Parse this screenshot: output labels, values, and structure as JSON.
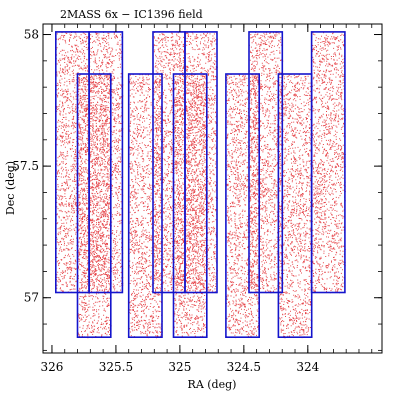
{
  "chart_data": {
    "type": "scatter",
    "title": "2MASS 6x  −  IC1396 field",
    "xlabel": "RA (deg)",
    "ylabel": "Dec (deg)",
    "xlim": [
      326.07,
      323.42
    ],
    "ylim": [
      56.79,
      58.04
    ],
    "x_reversed": true,
    "x_ticks": [
      {
        "value": 326,
        "label": "326"
      },
      {
        "value": 325.5,
        "label": "325.5"
      },
      {
        "value": 325,
        "label": "325"
      },
      {
        "value": 324.5,
        "label": "324.5"
      },
      {
        "value": 324,
        "label": "324"
      }
    ],
    "y_ticks": [
      {
        "value": 58,
        "label": "58"
      },
      {
        "value": 57.5,
        "label": "57.5"
      },
      {
        "value": 57,
        "label": "57"
      }
    ],
    "grid": false,
    "legend": "none",
    "colors": {
      "points": "#e0191f",
      "fields": "#1414cc",
      "axes": "#000000"
    },
    "series": [
      {
        "name": "",
        "kind": "scan-field-outlines",
        "fields": [
          {
            "ra_min": 325.71,
            "ra_max": 325.97,
            "dec_min": 57.02,
            "dec_max": 58.01
          },
          {
            "ra_min": 325.45,
            "ra_max": 325.71,
            "dec_min": 57.02,
            "dec_max": 58.01
          },
          {
            "ra_min": 324.96,
            "ra_max": 325.21,
            "dec_min": 57.02,
            "dec_max": 58.01
          },
          {
            "ra_min": 324.71,
            "ra_max": 324.96,
            "dec_min": 57.02,
            "dec_max": 58.01
          },
          {
            "ra_min": 324.2,
            "ra_max": 324.46,
            "dec_min": 57.02,
            "dec_max": 58.01
          },
          {
            "ra_min": 323.71,
            "ra_max": 323.97,
            "dec_min": 57.02,
            "dec_max": 58.01
          },
          {
            "ra_min": 325.54,
            "ra_max": 325.8,
            "dec_min": 56.85,
            "dec_max": 57.85
          },
          {
            "ra_min": 325.14,
            "ra_max": 325.4,
            "dec_min": 56.85,
            "dec_max": 57.85
          },
          {
            "ra_min": 324.79,
            "ra_max": 325.05,
            "dec_min": 56.85,
            "dec_max": 57.85
          },
          {
            "ra_min": 324.38,
            "ra_max": 324.64,
            "dec_min": 56.85,
            "dec_max": 57.85
          },
          {
            "ra_min": 323.97,
            "ra_max": 324.23,
            "dec_min": 56.85,
            "dec_max": 57.85
          }
        ]
      },
      {
        "name": "",
        "kind": "stellar-sources",
        "density_note": "dense uniform point cloud filling every field outline"
      }
    ]
  }
}
